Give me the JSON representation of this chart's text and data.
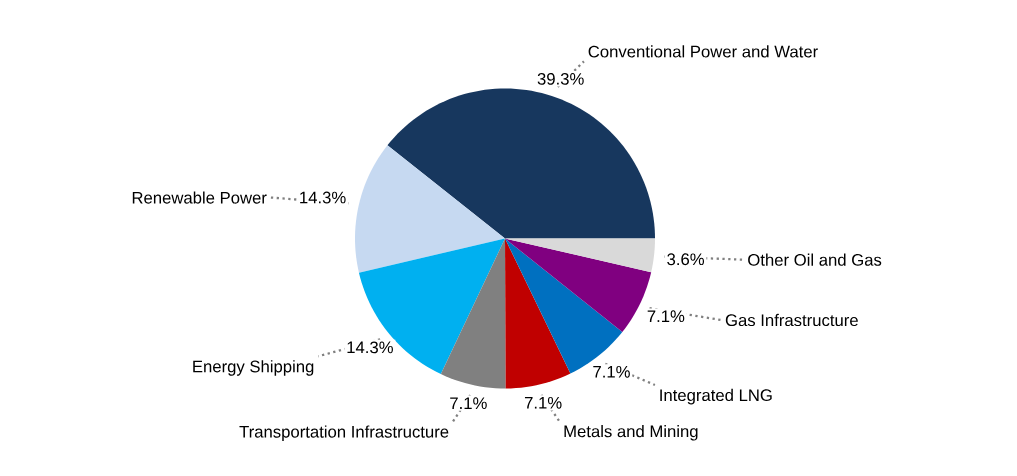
{
  "chart_data": {
    "type": "pie",
    "categories": [
      "Conventional Power and Water",
      "Renewable Power",
      "Energy Shipping",
      "Transportation Infrastructure",
      "Metals and Mining",
      "Integrated LNG",
      "Gas Infrastructure",
      "Other Oil and Gas"
    ],
    "values": [
      39.3,
      14.3,
      14.3,
      7.1,
      7.1,
      7.1,
      7.1,
      3.6
    ],
    "value_labels": [
      "39.3%",
      "14.3%",
      "14.3%",
      "7.1%",
      "7.1%",
      "7.1%",
      "7.1%",
      "3.6%"
    ],
    "colors": [
      "#17375e",
      "#c6d9f1",
      "#00b0f0",
      "#808080",
      "#c00000",
      "#0070c0",
      "#800080",
      "#d9d9d9"
    ]
  }
}
